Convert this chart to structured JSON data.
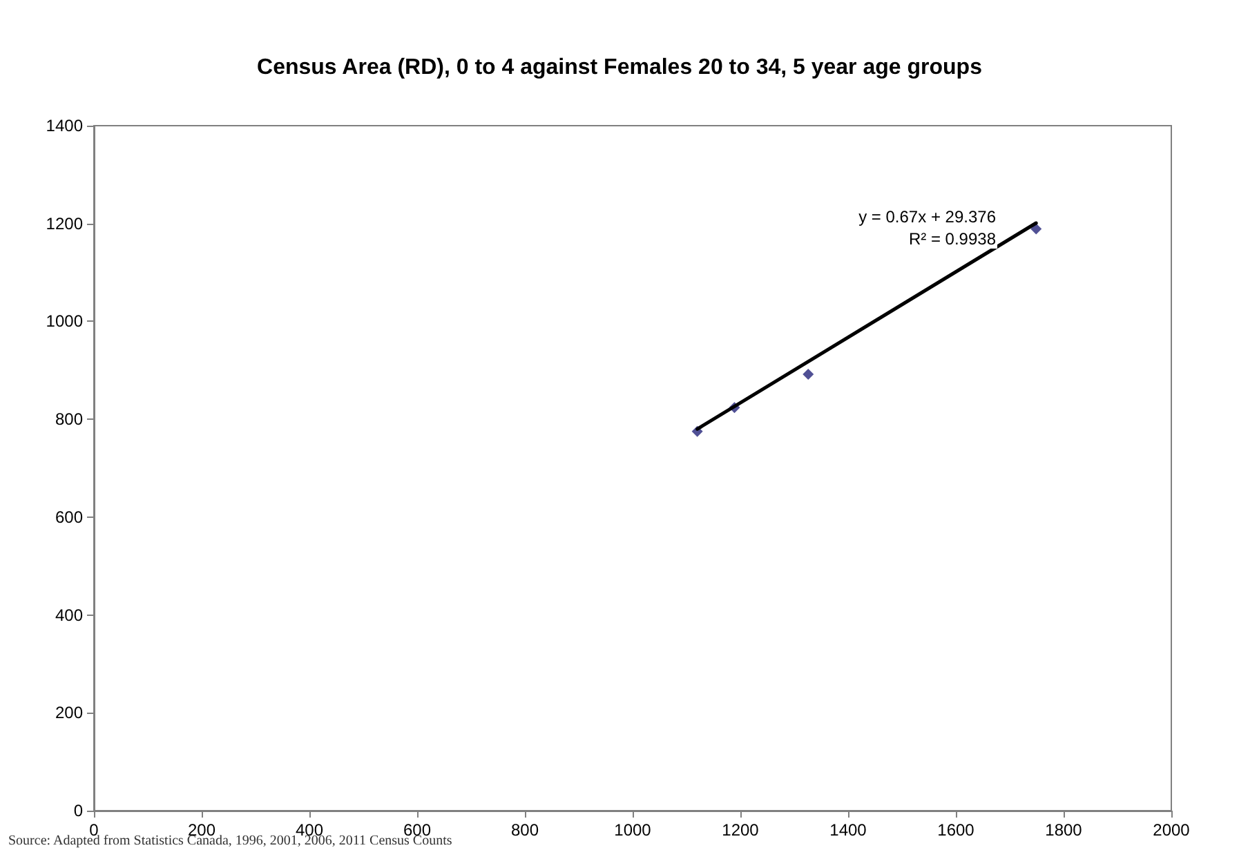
{
  "chart_data": {
    "type": "scatter",
    "title": "Census Area (RD), 0 to 4 against Females 20 to 34, 5 year age groups",
    "series": [
      {
        "type": "scatter",
        "color": "#24247a",
        "marker": "diamond",
        "x": [
          1120,
          1189,
          1326,
          1749
        ],
        "values": [
          775,
          824,
          892,
          1189
        ]
      },
      {
        "type": "line",
        "color": "#000000",
        "marker": "none",
        "line_style": "solid",
        "x": [
          1120,
          1749
        ],
        "values": [
          780,
          1201
        ]
      }
    ],
    "xlim": [
      0,
      2000
    ],
    "xticks": [
      0,
      200,
      400,
      600,
      800,
      1000,
      1200,
      1400,
      1600,
      1800,
      2000
    ],
    "ylim": [
      0,
      1400
    ],
    "yticks": [
      0,
      200,
      400,
      600,
      800,
      1000,
      1200,
      1400
    ],
    "grid": false,
    "annotations": [
      "y = 0.67x + 29.376",
      "R² = 0.9938",
      "Source: Adapted from Statistics Canada, 1996, 2001, 2006, 2011 Census Counts"
    ]
  }
}
